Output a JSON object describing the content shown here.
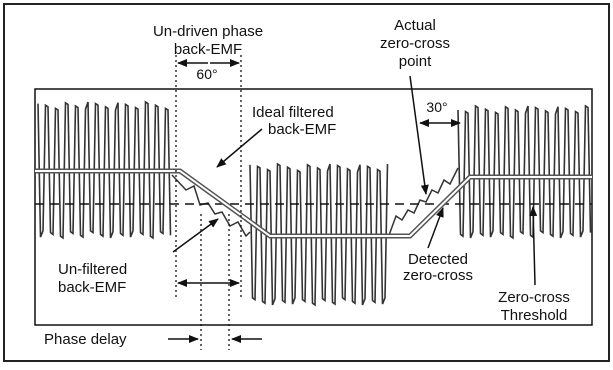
{
  "labels": {
    "undriven": [
      "Un-driven phase",
      "back-EMF"
    ],
    "angle60": "60°",
    "actual": [
      "Actual",
      "zero-cross",
      "point"
    ],
    "angle30": "30°",
    "ideal": [
      "Ideal filtered",
      "back-EMF"
    ],
    "unfiltered": [
      "Un-filtered",
      "back-EMF"
    ],
    "detected": [
      "Detected",
      "zero-cross"
    ],
    "threshold": [
      "Zero-cross",
      "Threshold"
    ],
    "phase_delay": "Phase delay"
  },
  "colors": {
    "ink": "#111111",
    "waveform": "#333333",
    "filtered": "#666666",
    "background": "#ffffff"
  }
}
